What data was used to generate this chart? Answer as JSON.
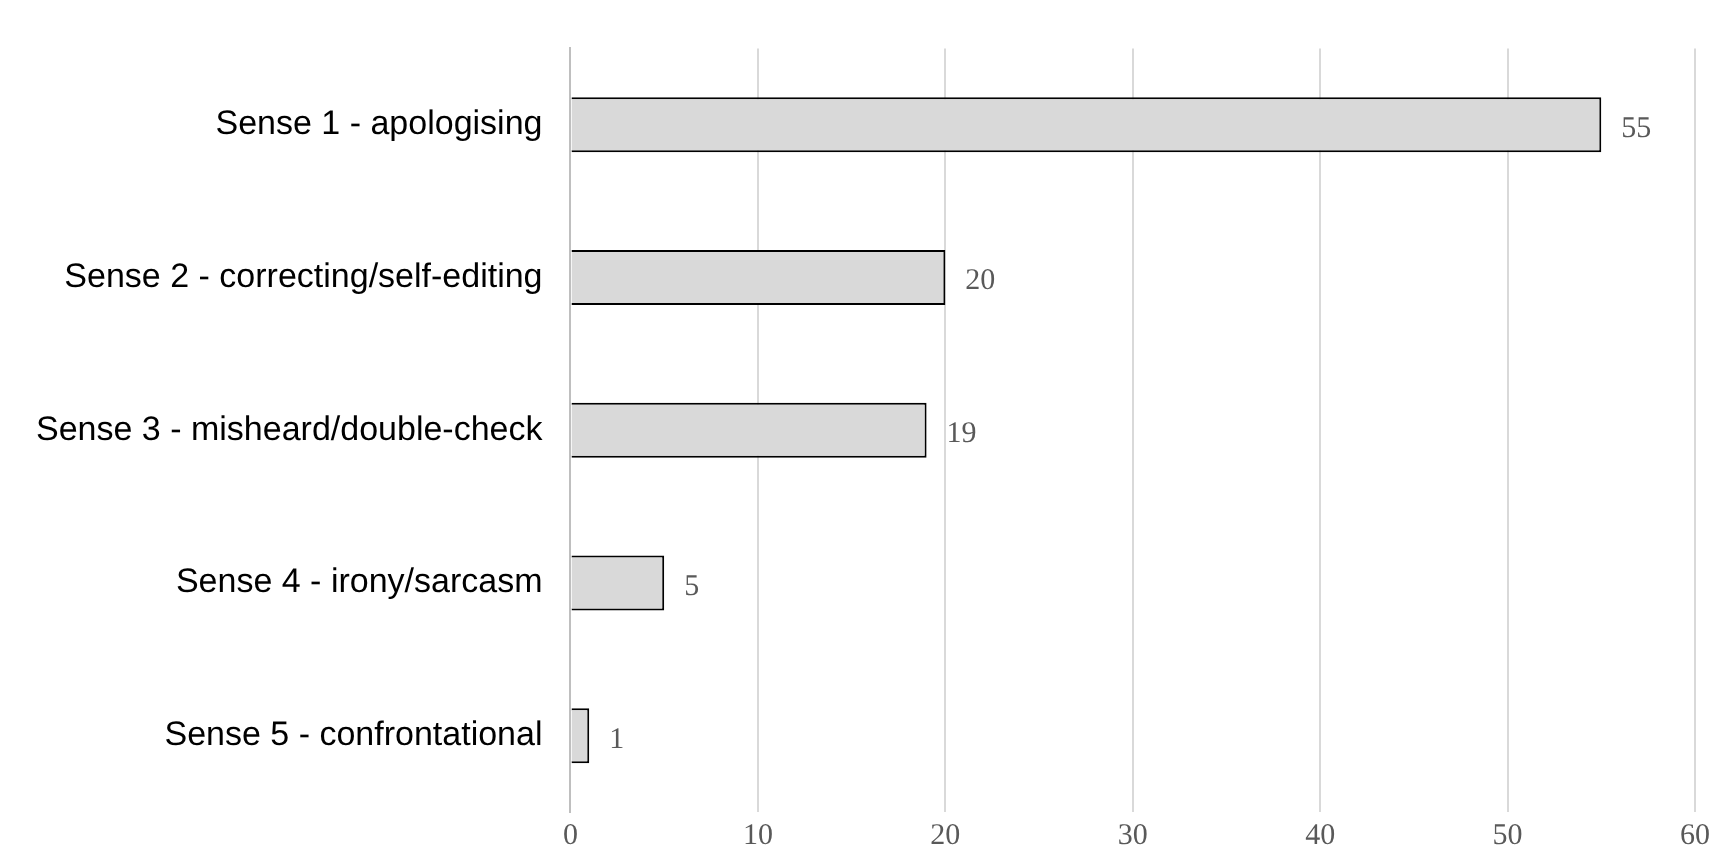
{
  "chart_data": {
    "type": "bar",
    "orientation": "horizontal",
    "categories": [
      "Sense 1 - apologising",
      "Sense 2 - correcting/self-editing",
      "Sense 3 - misheard/double-check",
      "Sense 4 - irony/sarcasm",
      "Sense 5 - confrontational"
    ],
    "values": [
      55,
      20,
      19,
      5,
      1
    ],
    "color": "#d9d9d9",
    "xlim": [
      0,
      60
    ],
    "xticks": [
      0,
      10,
      20,
      30,
      40,
      50,
      60
    ],
    "grid": "x",
    "data_labels": true,
    "legend": false
  }
}
